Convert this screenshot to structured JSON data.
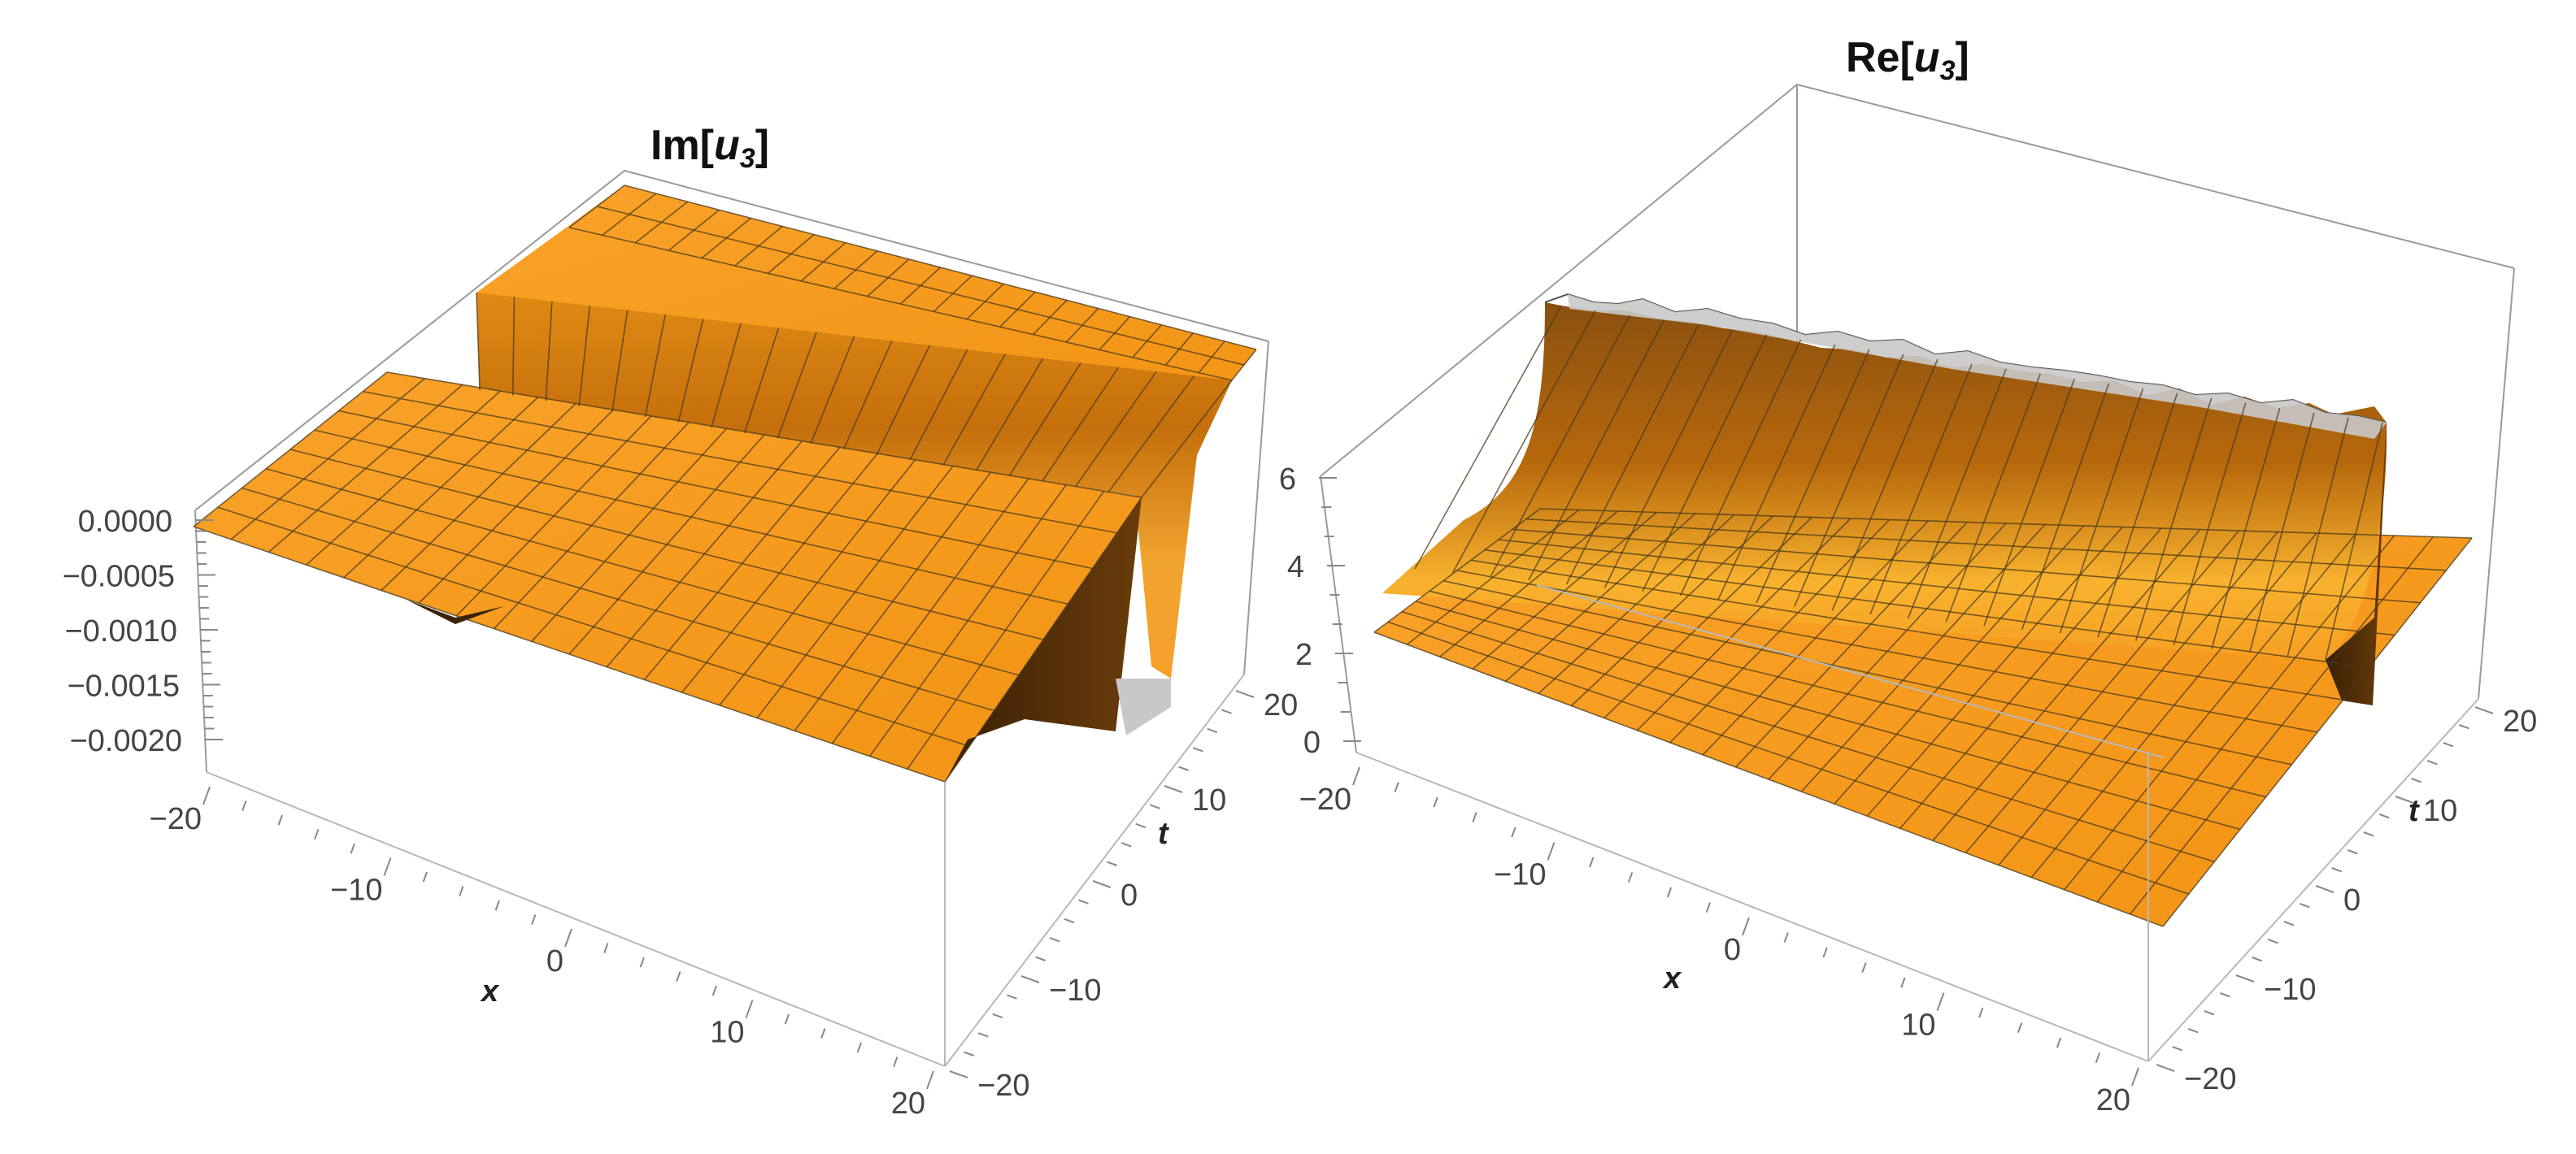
{
  "charts": [
    {
      "title_prefix": "Im[",
      "title_var": "u",
      "title_sub": "3",
      "title_suffix": "]",
      "x_label": "x",
      "t_label": "t",
      "x_ticks": [
        "−20",
        "−10",
        "0",
        "10",
        "20"
      ],
      "t_ticks": [
        "−20",
        "−10",
        "0",
        "10",
        "20"
      ],
      "z_ticks": [
        "0.0000",
        "−0.0005",
        "−0.0010",
        "−0.0015",
        "−0.0020"
      ]
    },
    {
      "title_prefix": "Re[",
      "title_var": "u",
      "title_sub": "3",
      "title_suffix": "]",
      "x_label": "x",
      "t_label": "t",
      "x_ticks": [
        "−20",
        "−10",
        "0",
        "10",
        "20"
      ],
      "t_ticks": [
        "−20",
        "−10",
        "0",
        "10",
        "20"
      ],
      "z_ticks": [
        "0",
        "2",
        "4",
        "6"
      ]
    }
  ],
  "chart_data": [
    {
      "type": "surface3d",
      "title": "Im[u3]",
      "xlabel": "x",
      "ylabel": "t",
      "xlim": [
        -20,
        20
      ],
      "tlim": [
        -20,
        20
      ],
      "zlim": [
        -0.0022,
        0.0001
      ],
      "description_values": {
        "plateau_high": 0.0,
        "plateau_low": -0.0004,
        "step_location_x_minus_t_approx": -2
      },
      "colors": {
        "surface": "#f79a1c",
        "surface_dark": "#5a3308",
        "box": "#9a9a9a"
      }
    },
    {
      "type": "surface3d",
      "title": "Re[u3]",
      "xlabel": "x",
      "ylabel": "t",
      "xlim": [
        -20,
        20
      ],
      "tlim": [
        -20,
        20
      ],
      "zlim": [
        -0.3,
        9
      ],
      "description_values": {
        "base_level": 2.0,
        "peak_level_clipped": 9.0,
        "singular_line": "x - t ≈ -20"
      },
      "colors": {
        "surface": "#f79a1c",
        "surface_dark": "#6a3a08",
        "box": "#9a9a9a"
      }
    }
  ]
}
